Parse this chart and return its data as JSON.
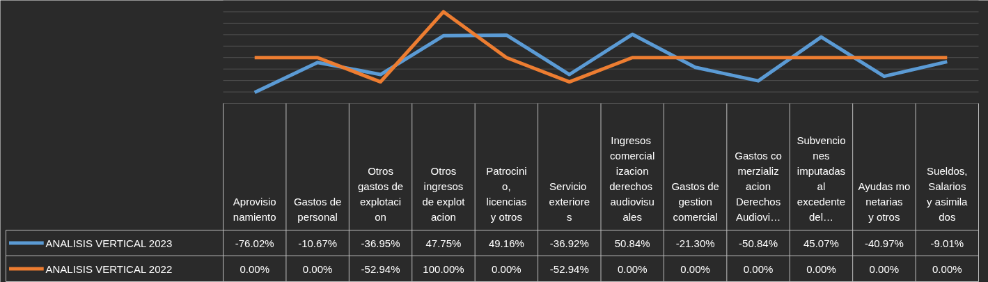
{
  "chart_data": {
    "type": "line",
    "categories": [
      "Aprovisionamiento",
      "Gastos de personal",
      "Otros gastos de explotacion",
      "Otros ingresos de explotacion",
      "Patrocinio, licencias y otros",
      "Servicio exteriores",
      "Ingresos comercializacion derechos audiovisuales",
      "Gastos de gestion comercial",
      "Gastos comerzializacion Derechos Audiovi…",
      "Subvenciones imputadas al excedente del…",
      "Ayudas monetarias y otros",
      "Sueldos, Salarios y asimilados"
    ],
    "series": [
      {
        "name": "ANALISIS VERTICAL 2023",
        "color": "#5b9bd5",
        "values": [
          -76.02,
          -10.67,
          -36.95,
          47.75,
          49.16,
          -36.92,
          50.84,
          -21.3,
          -50.84,
          45.07,
          -40.97,
          -9.01
        ],
        "value_labels": [
          "-76.02%",
          "-10.67%",
          "-36.95%",
          "47.75%",
          "49.16%",
          "-36.92%",
          "50.84%",
          "-21.30%",
          "-50.84%",
          "45.07%",
          "-40.97%",
          "-9.01%"
        ]
      },
      {
        "name": "ANALISIS VERTICAL 2022",
        "color": "#ed7d31",
        "values": [
          0,
          0,
          -52.94,
          100,
          0,
          -52.94,
          0,
          0,
          0,
          0,
          0,
          0
        ],
        "value_labels": [
          "0.00%",
          "0.00%",
          "-52.94%",
          "100.00%",
          "0.00%",
          "-52.94%",
          "0.00%",
          "0.00%",
          "0.00%",
          "0.00%",
          "0.00%",
          "0.00%"
        ]
      }
    ],
    "ylim": [
      -100,
      125
    ],
    "yticks": [
      {
        "value": -100,
        "label": null
      },
      {
        "value": -75,
        "label": null
      },
      {
        "value": -50,
        "label": null
      },
      {
        "value": -25,
        "label": null
      },
      {
        "value": 0,
        "label": null
      },
      {
        "value": 25,
        "label": null
      },
      {
        "value": 50,
        "label": null
      },
      {
        "value": 75,
        "label": null
      },
      {
        "value": 100,
        "label": null
      },
      {
        "value": 125,
        "label": null
      }
    ],
    "grid": "y",
    "tick_labels": "x",
    "legend": "bottom",
    "line_style": "solid",
    "marker": "none"
  }
}
